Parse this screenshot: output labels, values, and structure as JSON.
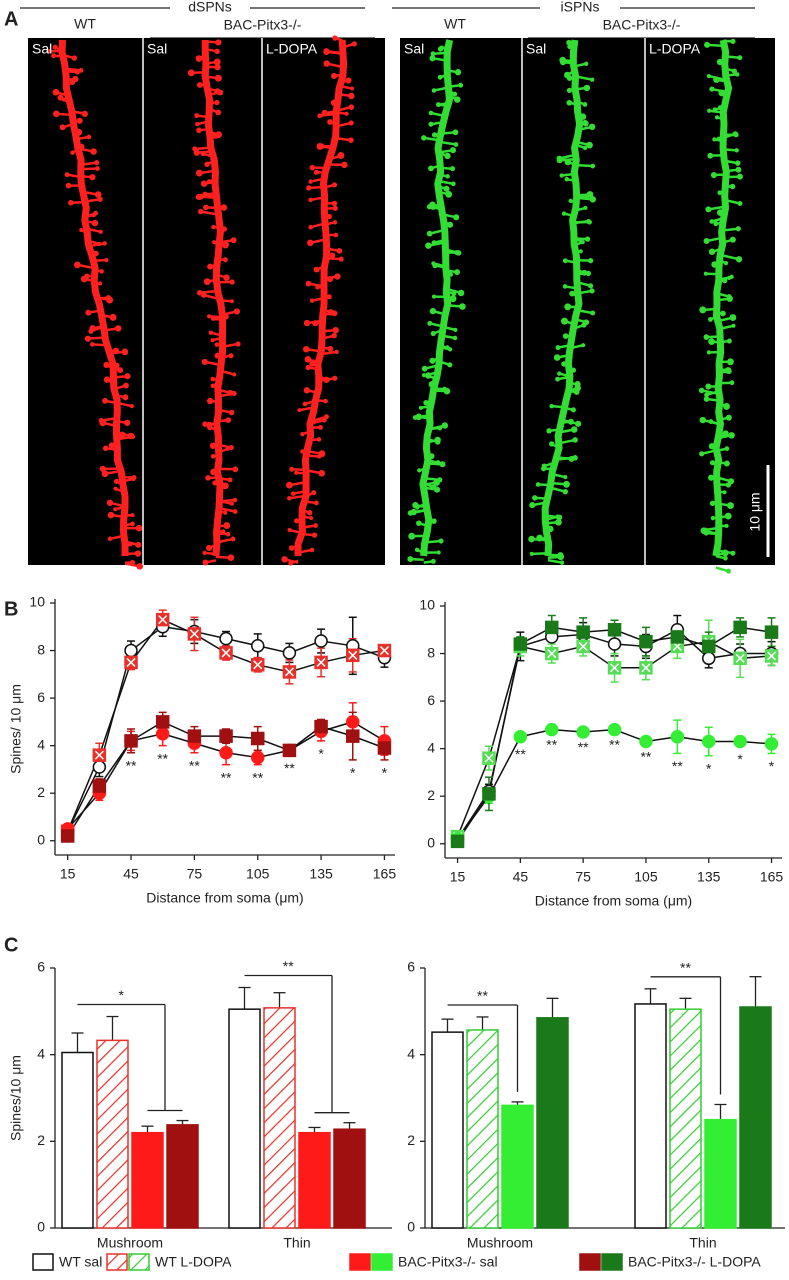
{
  "panel_labels": [
    "A",
    "B",
    "C"
  ],
  "panel_a": {
    "groups": [
      {
        "title": "dSPNs",
        "wt": "WT",
        "bac": "BAC-Pitx3-/-",
        "images": [
          "Sal",
          "Sal",
          "L-DOPA"
        ],
        "color": "#ff2020"
      },
      {
        "title": "iSPNs",
        "wt": "WT",
        "bac": "BAC-Pitx3-/-",
        "images": [
          "Sal",
          "Sal",
          "L-DOPA"
        ],
        "color": "#33dd33"
      }
    ],
    "scale_bar": "10 μm"
  },
  "legend": [
    {
      "label": "WT sal",
      "colors": [
        "#ffffff"
      ],
      "hatched": false
    },
    {
      "label": "WT L-DOPA",
      "colors": [
        "#e8302a",
        "#33cc33"
      ],
      "hatched": true
    },
    {
      "label": "BAC-Pitx3-/- sal",
      "colors": [
        "#ff1a1a",
        "#33ee33"
      ],
      "hatched": false
    },
    {
      "label": "BAC-Pitx3-/- L-DOPA",
      "colors": [
        "#a01010",
        "#1a7a1a"
      ],
      "hatched": false
    }
  ],
  "chart_data": [
    {
      "type": "line",
      "ylabel": "Spines/ 10 μm",
      "xlabel": "Distance from soma (μm)",
      "x": [
        15,
        30,
        45,
        60,
        75,
        90,
        105,
        120,
        135,
        150,
        165
      ],
      "xlim": [
        9,
        170
      ],
      "xticks": [
        15,
        45,
        75,
        105,
        135,
        165
      ],
      "ylim": [
        -0.6,
        10
      ],
      "yticks": [
        0,
        2,
        4,
        6,
        8,
        10
      ],
      "series": [
        {
          "color": "#ffffff",
          "marker": "circle",
          "hatched": false,
          "values": [
            0.4,
            3.1,
            8.0,
            9.0,
            8.8,
            8.5,
            8.2,
            7.9,
            8.4,
            8.2,
            7.7
          ],
          "errors": [
            0.2,
            0.4,
            0.4,
            0.4,
            0.5,
            0.3,
            0.5,
            0.4,
            0.5,
            1.2,
            0.4
          ]
        },
        {
          "color": "#e8302a",
          "marker": "square",
          "hatched": true,
          "values": [
            0.4,
            3.6,
            7.5,
            9.3,
            8.7,
            7.9,
            7.4,
            7.1,
            7.5,
            7.8,
            8.0
          ],
          "errors": [
            0.2,
            0.5,
            0.3,
            0.4,
            0.7,
            0.3,
            0.3,
            0.5,
            0.6,
            0.7,
            0.2
          ]
        },
        {
          "color": "#ff1a1a",
          "marker": "circle",
          "hatched": false,
          "values": [
            0.5,
            2.0,
            4.2,
            4.5,
            4.1,
            3.7,
            3.5,
            3.8,
            4.6,
            5.0,
            4.2
          ],
          "errors": [
            0.2,
            0.3,
            0.4,
            0.5,
            0.4,
            0.5,
            0.3,
            0.2,
            0.4,
            0.8,
            0.6
          ]
        },
        {
          "color": "#a01010",
          "marker": "square",
          "hatched": false,
          "values": [
            0.2,
            2.3,
            4.2,
            5.0,
            4.4,
            4.4,
            4.3,
            3.8,
            4.8,
            4.4,
            3.9
          ],
          "errors": [
            0.2,
            0.3,
            0.5,
            0.4,
            0.4,
            0.3,
            0.5,
            0.2,
            0.3,
            1.0,
            0.5
          ]
        }
      ],
      "significance": [
        {
          "x": 45,
          "label": "**"
        },
        {
          "x": 60,
          "label": "**"
        },
        {
          "x": 75,
          "label": "**"
        },
        {
          "x": 90,
          "label": "**"
        },
        {
          "x": 105,
          "label": "**"
        },
        {
          "x": 120,
          "label": "**"
        },
        {
          "x": 135,
          "label": "*"
        },
        {
          "x": 150,
          "label": "*"
        },
        {
          "x": 165,
          "label": "*"
        }
      ]
    },
    {
      "type": "line",
      "xlabel": "Distance from soma (μm)",
      "x": [
        15,
        30,
        45,
        60,
        75,
        90,
        105,
        120,
        135,
        150,
        165
      ],
      "xlim": [
        9,
        170
      ],
      "xticks": [
        15,
        45,
        75,
        105,
        135,
        165
      ],
      "ylim": [
        -0.6,
        10
      ],
      "yticks": [
        0,
        2,
        4,
        6,
        8,
        10
      ],
      "series": [
        {
          "color": "#ffffff",
          "marker": "circle",
          "hatched": false,
          "values": [
            0.2,
            2.2,
            8.3,
            8.7,
            8.8,
            8.4,
            8.3,
            9.0,
            7.8,
            8.0,
            8.0
          ],
          "errors": [
            0.2,
            0.3,
            0.6,
            0.5,
            0.5,
            0.5,
            0.5,
            0.6,
            0.4,
            0.4,
            0.5
          ]
        },
        {
          "color": "#55dd55",
          "marker": "square",
          "hatched": true,
          "values": [
            0.3,
            3.6,
            8.3,
            8.0,
            8.3,
            7.4,
            7.4,
            8.3,
            8.5,
            7.8,
            7.9
          ],
          "errors": [
            0.2,
            0.5,
            0.4,
            0.4,
            0.4,
            0.6,
            0.5,
            0.5,
            0.9,
            0.8,
            0.4
          ]
        },
        {
          "color": "#33ee33",
          "marker": "circle",
          "hatched": false,
          "values": [
            0.2,
            2.0,
            4.5,
            4.8,
            4.7,
            4.8,
            4.3,
            4.5,
            4.3,
            4.3,
            4.2
          ],
          "errors": [
            0.1,
            0.3,
            0.2,
            0.1,
            0.1,
            0.1,
            0.1,
            0.7,
            0.6,
            0.2,
            0.4
          ]
        },
        {
          "color": "#1a7a1a",
          "marker": "square",
          "hatched": false,
          "values": [
            0.1,
            2.1,
            8.4,
            9.1,
            8.9,
            9.0,
            8.5,
            8.7,
            8.3,
            9.1,
            8.9
          ],
          "errors": [
            0.1,
            0.7,
            0.3,
            0.5,
            0.6,
            0.4,
            0.6,
            0.5,
            0.6,
            0.4,
            0.6
          ]
        }
      ],
      "significance": [
        {
          "x": 45,
          "label": "**"
        },
        {
          "x": 60,
          "label": "**"
        },
        {
          "x": 75,
          "label": "**"
        },
        {
          "x": 90,
          "label": "**"
        },
        {
          "x": 105,
          "label": "**"
        },
        {
          "x": 120,
          "label": "**"
        },
        {
          "x": 135,
          "label": "*"
        },
        {
          "x": 150,
          "label": "*"
        },
        {
          "x": 165,
          "label": "*"
        }
      ]
    },
    {
      "type": "bar",
      "ylabel": "Spines/10 μm",
      "categories": [
        "Mushroom",
        "Thin"
      ],
      "ylim": [
        0,
        6
      ],
      "yticks": [
        0,
        2,
        4,
        6
      ],
      "series": [
        {
          "color": "#ffffff",
          "hatched": false,
          "values": [
            4.05,
            5.05
          ],
          "errors": [
            0.45,
            0.5
          ]
        },
        {
          "color": "#e8302a",
          "hatched": true,
          "values": [
            4.33,
            5.08
          ],
          "errors": [
            0.55,
            0.35
          ]
        },
        {
          "color": "#ff1a1a",
          "hatched": false,
          "values": [
            2.2,
            2.2
          ],
          "errors": [
            0.15,
            0.12
          ]
        },
        {
          "color": "#a01010",
          "hatched": false,
          "values": [
            2.38,
            2.28
          ],
          "errors": [
            0.1,
            0.15
          ]
        }
      ],
      "brackets": [
        {
          "label": "*"
        },
        {
          "label": "**"
        }
      ]
    },
    {
      "type": "bar",
      "categories": [
        "Mushroom",
        "Thin"
      ],
      "ylim": [
        0,
        6
      ],
      "yticks": [
        0,
        2,
        4,
        6
      ],
      "series": [
        {
          "color": "#ffffff",
          "hatched": false,
          "values": [
            4.52,
            5.17
          ],
          "errors": [
            0.3,
            0.35
          ]
        },
        {
          "color": "#33cc33",
          "hatched": true,
          "values": [
            4.57,
            5.05
          ],
          "errors": [
            0.3,
            0.25
          ]
        },
        {
          "color": "#33ee33",
          "hatched": false,
          "values": [
            2.83,
            2.5
          ],
          "errors": [
            0.08,
            0.35
          ]
        },
        {
          "color": "#1a7a1a",
          "hatched": false,
          "values": [
            4.85,
            5.1
          ],
          "errors": [
            0.45,
            0.7
          ]
        }
      ],
      "brackets": [
        {
          "label": "**"
        },
        {
          "label": "**"
        }
      ]
    }
  ]
}
